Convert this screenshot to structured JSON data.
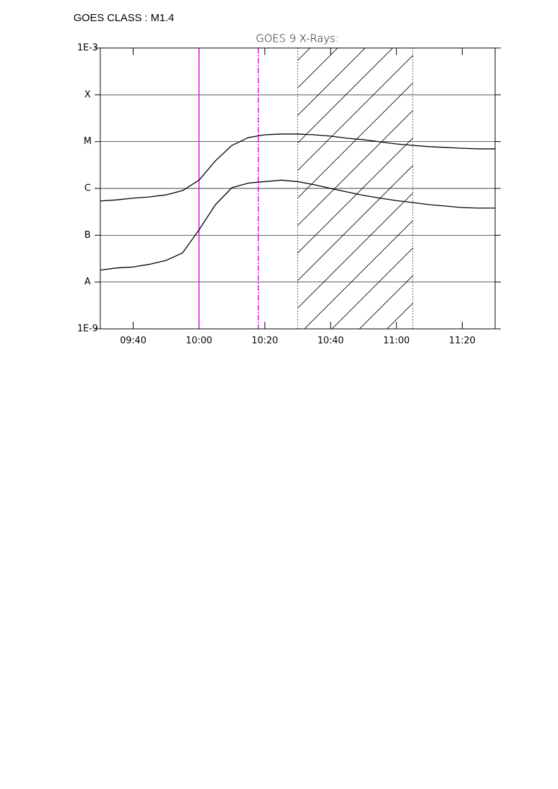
{
  "chart_data": {
    "type": "line",
    "annotation": "GOES CLASS : M1.4",
    "title": "GOES 9 X-Rays:",
    "log_scale_y": true,
    "grid": true,
    "x": [
      "09:30",
      "09:35",
      "09:40",
      "09:45",
      "09:50",
      "09:55",
      "10:00",
      "10:05",
      "10:10",
      "10:15",
      "10:20",
      "10:25",
      "10:30",
      "10:35",
      "10:40",
      "10:45",
      "10:50",
      "10:55",
      "11:00",
      "11:05",
      "11:10",
      "11:15",
      "11:20",
      "11:25",
      "11:30"
    ],
    "xlim": [
      "09:30",
      "11:30"
    ],
    "xticks": [
      "09:40",
      "10:00",
      "10:20",
      "10:40",
      "11:00",
      "11:20"
    ],
    "ylim": [
      1e-09,
      0.001
    ],
    "yticks": [
      {
        "value": 1e-09,
        "label": "1E-9"
      },
      {
        "value": 1e-08,
        "label": "A"
      },
      {
        "value": 1e-07,
        "label": "B"
      },
      {
        "value": 1e-06,
        "label": "C"
      },
      {
        "value": 1e-05,
        "label": "M"
      },
      {
        "value": 0.0001,
        "label": "X"
      },
      {
        "value": 0.001,
        "label": "1E-3"
      }
    ],
    "series": [
      {
        "color": "#000000",
        "values": [
          5.4e-07,
          5.7e-07,
          6.2e-07,
          6.6e-07,
          7.3e-07,
          9e-07,
          1.5e-06,
          3.9e-06,
          8.3e-06,
          1.22e-05,
          1.4e-05,
          1.45e-05,
          1.45e-05,
          1.4e-05,
          1.31e-05,
          1.18e-05,
          1.1e-05,
          9.9e-06,
          8.9e-06,
          8.3e-06,
          7.8e-06,
          7.5e-06,
          7.2e-06,
          7e-06,
          7e-06
        ]
      },
      {
        "color": "#000000",
        "values": [
          1.8e-08,
          2e-08,
          2.1e-08,
          2.4e-08,
          2.9e-08,
          4.2e-08,
          1.3e-07,
          4.5e-07,
          1.04e-06,
          1.3e-06,
          1.4e-06,
          1.5e-06,
          1.4e-06,
          1.2e-06,
          1e-06,
          8.4e-07,
          7.1e-07,
          6.2e-07,
          5.5e-07,
          5e-07,
          4.5e-07,
          4.2e-07,
          3.9e-07,
          3.8e-07,
          3.8e-07
        ]
      }
    ],
    "markers": [
      {
        "x": "10:00",
        "color": "#e000e0",
        "style": "solid"
      },
      {
        "x": "10:18",
        "color": "#e000e0",
        "style": "dashed"
      }
    ],
    "span": [
      "10:30",
      "11:05"
    ]
  }
}
